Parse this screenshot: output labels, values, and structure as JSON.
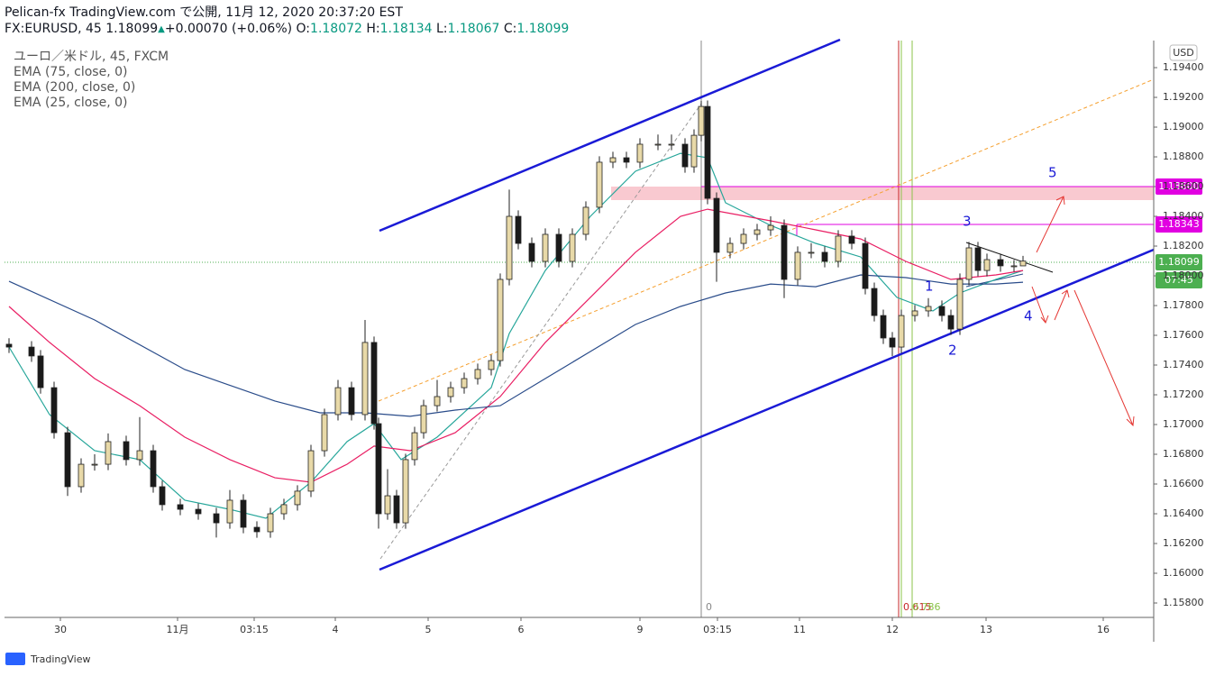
{
  "chart_data": {
    "type": "candlestick",
    "header": {
      "title": "Pelican-fx TradingView.com で公開, 11月 12, 2020 20:37:20 EST",
      "symbol": "FX:EURUSD, 45",
      "last": "1.18099",
      "arrow": "▲",
      "change": "+0.00070 (+0.06%)",
      "o_label": "O:",
      "o": "1.18072",
      "h_label": "H:",
      "h": "1.18134",
      "l_label": "L:",
      "l": "1.18067",
      "c_label": "C:",
      "c": "1.18099"
    },
    "legend": [
      "ユーロ／米ドル, 45, FXCM",
      "EMA (75, close, 0)",
      "EMA (200, close, 0)",
      "EMA (25, close, 0)"
    ],
    "currency": "USD",
    "footer": "TradingView",
    "price_tags": [
      {
        "label": "1.18600",
        "color": "#e100e1"
      },
      {
        "label": "1.18343",
        "color": "#e100e1"
      },
      {
        "label": "1.18099",
        "color": "#4caf50"
      },
      {
        "label": "07:45",
        "color": "#4caf50"
      }
    ],
    "annotations": [
      "1",
      "2",
      "3",
      "4",
      "5",
      "0",
      "0.615",
      "0.786"
    ],
    "xlim": [
      0,
      1275
    ],
    "xticks": [
      {
        "value": 62,
        "label": "30"
      },
      {
        "value": 192,
        "label": "11月"
      },
      {
        "value": 277,
        "label": "03:15"
      },
      {
        "value": 367,
        "label": "4"
      },
      {
        "value": 470,
        "label": "5"
      },
      {
        "value": 573,
        "label": "6"
      },
      {
        "value": 705,
        "label": "9"
      },
      {
        "value": 791,
        "label": "03:15"
      },
      {
        "value": 882,
        "label": "11"
      },
      {
        "value": 985,
        "label": "12"
      },
      {
        "value": 1089,
        "label": "13"
      },
      {
        "value": 1219,
        "label": "16"
      }
    ],
    "ylim": [
      1.15703,
      1.19582
    ],
    "yticks": [
      {
        "value": 1.158,
        "label": "1.15800"
      },
      {
        "value": 1.16,
        "label": "1.16000"
      },
      {
        "value": 1.162,
        "label": "1.16200"
      },
      {
        "value": 1.164,
        "label": "1.16400"
      },
      {
        "value": 1.166,
        "label": "1.16600"
      },
      {
        "value": 1.168,
        "label": "1.16800"
      },
      {
        "value": 1.17,
        "label": "1.17000"
      },
      {
        "value": 1.172,
        "label": "1.17200"
      },
      {
        "value": 1.174,
        "label": "1.17400"
      },
      {
        "value": 1.176,
        "label": "1.17600"
      },
      {
        "value": 1.178,
        "label": "1.17800"
      },
      {
        "value": 1.18,
        "label": "1.18000"
      },
      {
        "value": 1.182,
        "label": "1.18200"
      },
      {
        "value": 1.184,
        "label": "1.18400"
      },
      {
        "value": 1.186,
        "label": "1.18600"
      },
      {
        "value": 1.188,
        "label": "1.18800"
      },
      {
        "value": 1.19,
        "label": "1.19000"
      },
      {
        "value": 1.192,
        "label": "1.19200"
      },
      {
        "value": 1.194,
        "label": "1.19400"
      }
    ],
    "up_color": "#e8d9a8",
    "down_color": "#1a1a1a",
    "x": [
      5,
      30,
      40,
      55,
      70,
      85,
      100,
      115,
      135,
      150,
      165,
      175,
      195,
      215,
      235,
      250,
      265,
      280,
      295,
      310,
      325,
      340,
      355,
      370,
      385,
      400,
      410,
      415,
      425,
      435,
      445,
      455,
      465,
      480,
      495,
      510,
      525,
      540,
      550,
      560,
      570,
      585,
      600,
      615,
      630,
      645,
      660,
      675,
      690,
      705,
      725,
      740,
      755,
      765,
      773,
      780,
      790,
      805,
      820,
      835,
      850,
      865,
      880,
      895,
      910,
      925,
      940,
      955,
      965,
      975,
      985,
      995,
      1010,
      1025,
      1040,
      1050,
      1060,
      1070,
      1080,
      1090,
      1105,
      1120,
      1130
    ],
    "open": [
      1.1754,
      1.17521,
      1.17461,
      1.17248,
      1.16945,
      1.16582,
      1.16733,
      1.16733,
      1.16885,
      1.16764,
      1.16824,
      1.16582,
      1.16461,
      1.1643,
      1.164,
      1.16339,
      1.16491,
      1.16309,
      1.16279,
      1.164,
      1.16461,
      1.16552,
      1.16824,
      1.17067,
      1.17248,
      1.17067,
      1.17552,
      1.17006,
      1.164,
      1.16521,
      1.16339,
      1.16764,
      1.16945,
      1.17127,
      1.17188,
      1.17248,
      1.17309,
      1.1737,
      1.1743,
      1.17976,
      1.184,
      1.18218,
      1.18097,
      1.18279,
      1.18097,
      1.18279,
      1.18461,
      1.18764,
      1.18794,
      1.18764,
      1.18885,
      1.18885,
      1.18885,
      1.18733,
      1.18945,
      1.19139,
      1.18521,
      1.18158,
      1.18218,
      1.18279,
      1.18309,
      1.18339,
      1.17976,
      1.18158,
      1.18158,
      1.18097,
      1.18267,
      1.18218,
      1.17915,
      1.17733,
      1.17582,
      1.17521,
      1.17733,
      1.17764,
      1.17794,
      1.17733,
      1.17642,
      1.17976,
      1.18188,
      1.18036,
      1.18109,
      1.18067,
      1.18067
    ],
    "high": [
      1.1758,
      1.17561,
      1.17501,
      1.17288,
      1.16985,
      1.16773,
      1.168,
      1.1694,
      1.16925,
      1.1705,
      1.16864,
      1.16622,
      1.16501,
      1.1647,
      1.1644,
      1.1656,
      1.16531,
      1.16349,
      1.1644,
      1.16501,
      1.16592,
      1.16864,
      1.17107,
      1.173,
      1.17288,
      1.17703,
      1.17592,
      1.17046,
      1.167,
      1.16561,
      1.16804,
      1.16985,
      1.17167,
      1.173,
      1.17288,
      1.17349,
      1.1741,
      1.1747,
      1.18016,
      1.1858,
      1.1844,
      1.18258,
      1.18319,
      1.18319,
      1.18319,
      1.18501,
      1.18804,
      1.18834,
      1.18834,
      1.18925,
      1.1895,
      1.1895,
      1.18925,
      1.18985,
      1.19176,
      1.19179,
      1.18561,
      1.18258,
      1.18319,
      1.18349,
      1.184,
      1.18379,
      1.18198,
      1.1822,
      1.18198,
      1.18307,
      1.18307,
      1.18258,
      1.17955,
      1.17773,
      1.17622,
      1.17773,
      1.17804,
      1.1785,
      1.17834,
      1.17773,
      1.18016,
      1.18228,
      1.18228,
      1.18149,
      1.18149,
      1.18107,
      1.18134
    ],
    "low": [
      1.17481,
      1.17421,
      1.17208,
      1.16905,
      1.1652,
      1.16542,
      1.1669,
      1.16693,
      1.16724,
      1.16724,
      1.16542,
      1.16421,
      1.1639,
      1.1636,
      1.1624,
      1.16299,
      1.16269,
      1.16239,
      1.16239,
      1.1636,
      1.16421,
      1.16512,
      1.16784,
      1.17027,
      1.17027,
      1.17027,
      1.16966,
      1.163,
      1.1636,
      1.16299,
      1.16299,
      1.16724,
      1.16905,
      1.17087,
      1.17148,
      1.17208,
      1.17269,
      1.1733,
      1.1739,
      1.17936,
      1.18178,
      1.18057,
      1.18057,
      1.18057,
      1.18057,
      1.18239,
      1.18421,
      1.18724,
      1.18724,
      1.18724,
      1.18845,
      1.18845,
      1.18693,
      1.18693,
      1.18905,
      1.18481,
      1.1796,
      1.18118,
      1.18178,
      1.18239,
      1.18269,
      1.1785,
      1.17936,
      1.18118,
      1.18057,
      1.18057,
      1.18178,
      1.17875,
      1.17693,
      1.17542,
      1.1746,
      1.17481,
      1.17693,
      1.17724,
      1.17693,
      1.17602,
      1.17602,
      1.17936,
      1.17996,
      1.17996,
      1.18027,
      1.18027,
      1.18067
    ],
    "close": [
      1.17521,
      1.17461,
      1.17248,
      1.16945,
      1.16582,
      1.16733,
      1.16733,
      1.16885,
      1.16764,
      1.16824,
      1.16582,
      1.16461,
      1.1643,
      1.164,
      1.16339,
      1.16491,
      1.16309,
      1.16279,
      1.164,
      1.16461,
      1.16552,
      1.16824,
      1.17067,
      1.17248,
      1.17067,
      1.17552,
      1.17006,
      1.164,
      1.16521,
      1.16339,
      1.16764,
      1.16945,
      1.17127,
      1.17188,
      1.17248,
      1.17309,
      1.1737,
      1.1743,
      1.17976,
      1.184,
      1.18218,
      1.18097,
      1.18279,
      1.18097,
      1.18279,
      1.18461,
      1.18764,
      1.18794,
      1.18764,
      1.18885,
      1.18885,
      1.18885,
      1.18733,
      1.18945,
      1.19139,
      1.18521,
      1.18158,
      1.18218,
      1.18279,
      1.18309,
      1.18339,
      1.17976,
      1.18158,
      1.18158,
      1.18097,
      1.18267,
      1.18218,
      1.17915,
      1.17733,
      1.17582,
      1.17521,
      1.17733,
      1.17764,
      1.17794,
      1.17733,
      1.17642,
      1.17976,
      1.18188,
      1.18036,
      1.18109,
      1.18067,
      1.18067,
      1.18099
    ],
    "lines": [
      {
        "name": "EMA 25",
        "color": "#26a69a",
        "x": [
          5,
          50,
          100,
          150,
          200,
          250,
          290,
          340,
          380,
          410,
          440,
          480,
          540,
          560,
          600,
          650,
          700,
          750,
          780,
          800,
          850,
          900,
          950,
          990,
          1030,
          1060,
          1100,
          1130
        ],
        "values": [
          1.17521,
          1.17067,
          1.16824,
          1.16764,
          1.16491,
          1.1643,
          1.1637,
          1.16612,
          1.16885,
          1.17006,
          1.16764,
          1.16915,
          1.17248,
          1.17612,
          1.18036,
          1.184,
          1.18703,
          1.18824,
          1.18794,
          1.18491,
          1.18339,
          1.18218,
          1.18127,
          1.17855,
          1.17764,
          1.17885,
          1.17976,
          1.18036
        ]
      },
      {
        "name": "EMA 75",
        "color": "#e91e63",
        "x": [
          5,
          50,
          100,
          150,
          200,
          250,
          300,
          340,
          380,
          410,
          450,
          500,
          550,
          600,
          650,
          700,
          750,
          780,
          850,
          900,
          950,
          1000,
          1050,
          1100,
          1130
        ],
        "values": [
          1.17794,
          1.17552,
          1.17309,
          1.17127,
          1.16915,
          1.16764,
          1.16642,
          1.16612,
          1.16733,
          1.16855,
          1.16824,
          1.16945,
          1.17188,
          1.17552,
          1.17855,
          1.18158,
          1.184,
          1.18448,
          1.1837,
          1.18309,
          1.18248,
          1.18097,
          1.17976,
          1.18006,
          1.18036
        ]
      },
      {
        "name": "EMA 200",
        "color": "#2a4c8a",
        "x": [
          5,
          100,
          200,
          300,
          350,
          400,
          450,
          500,
          550,
          600,
          650,
          700,
          750,
          800,
          850,
          900,
          950,
          1000,
          1050,
          1100,
          1130
        ],
        "values": [
          1.17963,
          1.17703,
          1.1737,
          1.17158,
          1.17079,
          1.17079,
          1.17055,
          1.17097,
          1.17127,
          1.17309,
          1.17491,
          1.17673,
          1.17794,
          1.17885,
          1.17945,
          1.17927,
          1.18006,
          1.17988,
          1.17945,
          1.17945,
          1.17957
        ]
      }
    ]
  }
}
